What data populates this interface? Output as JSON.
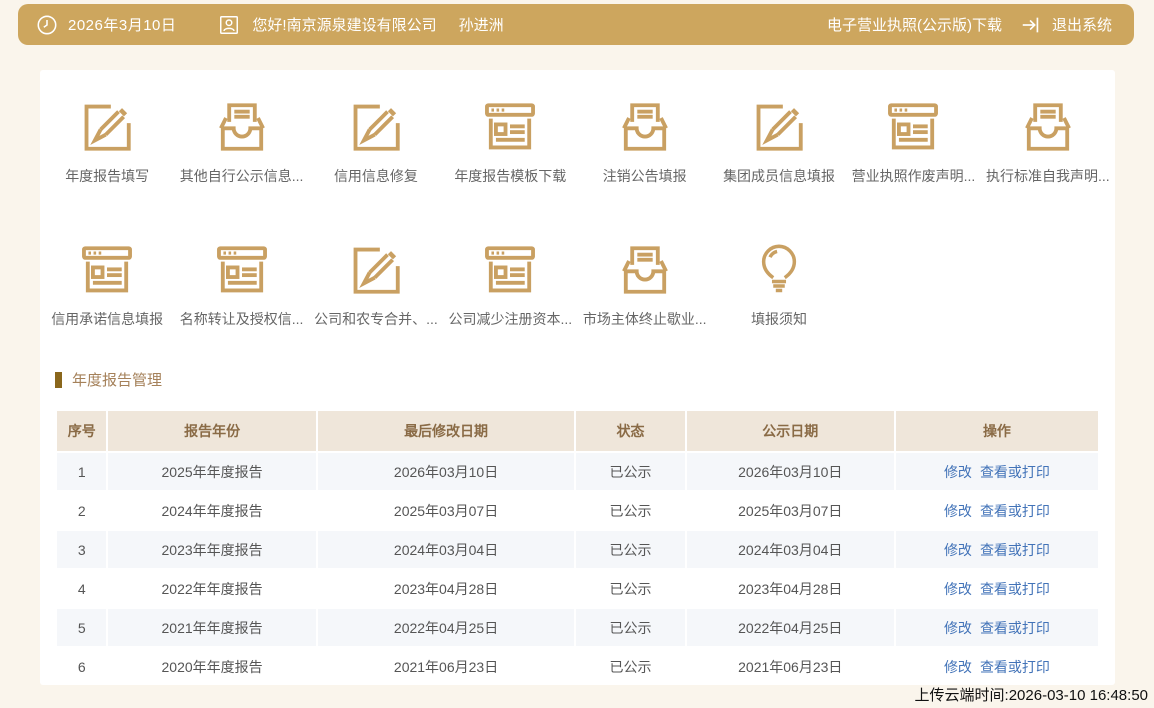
{
  "topbar": {
    "date": "2026年3月10日",
    "greeting": "您好!南京源泉建设有限公司",
    "user_name": "孙进洲",
    "license_download": "电子营业执照(公示版)下载",
    "logout": "退出系统"
  },
  "icons_grid": {
    "row1": [
      {
        "label": "年度报告填写",
        "icon": "edit"
      },
      {
        "label": "其他自行公示信息...",
        "icon": "inbox"
      },
      {
        "label": "信用信息修复",
        "icon": "edit"
      },
      {
        "label": "年度报告模板下载",
        "icon": "browser"
      },
      {
        "label": "注销公告填报",
        "icon": "inbox"
      },
      {
        "label": "集团成员信息填报",
        "icon": "edit"
      },
      {
        "label": "营业执照作废声明...",
        "icon": "browser"
      },
      {
        "label": "执行标准自我声明...",
        "icon": "inbox"
      }
    ],
    "row2": [
      {
        "label": "信用承诺信息填报",
        "icon": "browser"
      },
      {
        "label": "名称转让及授权信...",
        "icon": "browser"
      },
      {
        "label": "公司和农专合并、...",
        "icon": "edit"
      },
      {
        "label": "公司减少注册资本...",
        "icon": "browser"
      },
      {
        "label": "市场主体终止歇业...",
        "icon": "inbox"
      },
      {
        "label": "填报须知",
        "icon": "bulb"
      }
    ]
  },
  "section": {
    "title": "年度报告管理"
  },
  "table": {
    "headers": [
      "序号",
      "报告年份",
      "最后修改日期",
      "状态",
      "公示日期",
      "操作"
    ],
    "rows": [
      {
        "no": "1",
        "year": "2025年年度报告",
        "modified": "2026年03月10日",
        "status": "已公示",
        "published": "2026年03月10日",
        "actions": [
          "修改",
          "查看或打印"
        ]
      },
      {
        "no": "2",
        "year": "2024年年度报告",
        "modified": "2025年03月07日",
        "status": "已公示",
        "published": "2025年03月07日",
        "actions": [
          "修改",
          "查看或打印"
        ]
      },
      {
        "no": "3",
        "year": "2023年年度报告",
        "modified": "2024年03月04日",
        "status": "已公示",
        "published": "2024年03月04日",
        "actions": [
          "修改",
          "查看或打印"
        ]
      },
      {
        "no": "4",
        "year": "2022年年度报告",
        "modified": "2023年04月28日",
        "status": "已公示",
        "published": "2023年04月28日",
        "actions": [
          "修改",
          "查看或打印"
        ]
      },
      {
        "no": "5",
        "year": "2021年年度报告",
        "modified": "2022年04月25日",
        "status": "已公示",
        "published": "2022年04月25日",
        "actions": [
          "修改",
          "查看或打印"
        ]
      },
      {
        "no": "6",
        "year": "2020年年度报告",
        "modified": "2021年06月23日",
        "status": "已公示",
        "published": "2021年06月23日",
        "actions": [
          "修改",
          "查看或打印"
        ]
      }
    ]
  },
  "footer": {
    "upload_time": "上传云端时间:2026-03-10 16:48:50"
  },
  "colors": {
    "topbar_gold": "#cda65e",
    "icon_gold": "#c9a062",
    "section_bar": "#8a671c",
    "section_text": "#a5815a",
    "header_bg": "#efe6da",
    "header_text": "#8a6b46",
    "stripe_row": "#f5f7fa",
    "link_blue": "#4273b8",
    "page_bg": "#faf5ec"
  }
}
